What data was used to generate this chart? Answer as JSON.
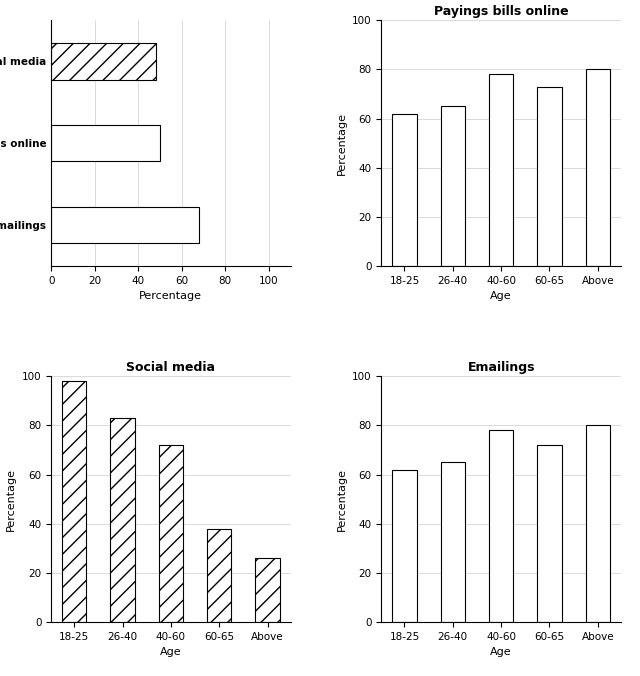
{
  "horizontal_bar": {
    "categories": [
      "Emailings",
      "Payings bills online",
      "Social media"
    ],
    "values": [
      68,
      50,
      48
    ],
    "patterns": [
      ":",
      "",
      "//"
    ],
    "xlabel": "Percentage",
    "xlim": [
      0,
      110
    ],
    "xticks": [
      0,
      20,
      40,
      60,
      80,
      100
    ]
  },
  "paying_bills": {
    "title": "Payings bills online",
    "categories": [
      "18-25",
      "26-40",
      "40-60",
      "60-65",
      "Above"
    ],
    "values": [
      62,
      65,
      78,
      73,
      80
    ],
    "pattern": "",
    "ylabel": "Percentage",
    "xlabel": "Age",
    "ylim": [
      0,
      100
    ],
    "yticks": [
      0,
      20,
      40,
      60,
      80,
      100
    ]
  },
  "social_media": {
    "title": "Social media",
    "categories": [
      "18-25",
      "26-40",
      "40-60",
      "60-65",
      "Above"
    ],
    "values": [
      98,
      83,
      72,
      38,
      26
    ],
    "pattern": "//",
    "ylabel": "Percentage",
    "xlabel": "Age",
    "ylim": [
      0,
      100
    ],
    "yticks": [
      0,
      20,
      40,
      60,
      80,
      100
    ]
  },
  "emailings": {
    "title": "Emailings",
    "categories": [
      "18-25",
      "26-40",
      "40-60",
      "60-65",
      "Above"
    ],
    "values": [
      62,
      65,
      78,
      72,
      80
    ],
    "pattern": ":",
    "ylabel": "Percentage",
    "xlabel": "Age",
    "ylim": [
      0,
      100
    ],
    "yticks": [
      0,
      20,
      40,
      60,
      80,
      100
    ]
  },
  "background_color": "#ffffff",
  "bar_edgecolor": "#000000",
  "bar_facecolor": "#ffffff",
  "grid_color": "#cccccc"
}
